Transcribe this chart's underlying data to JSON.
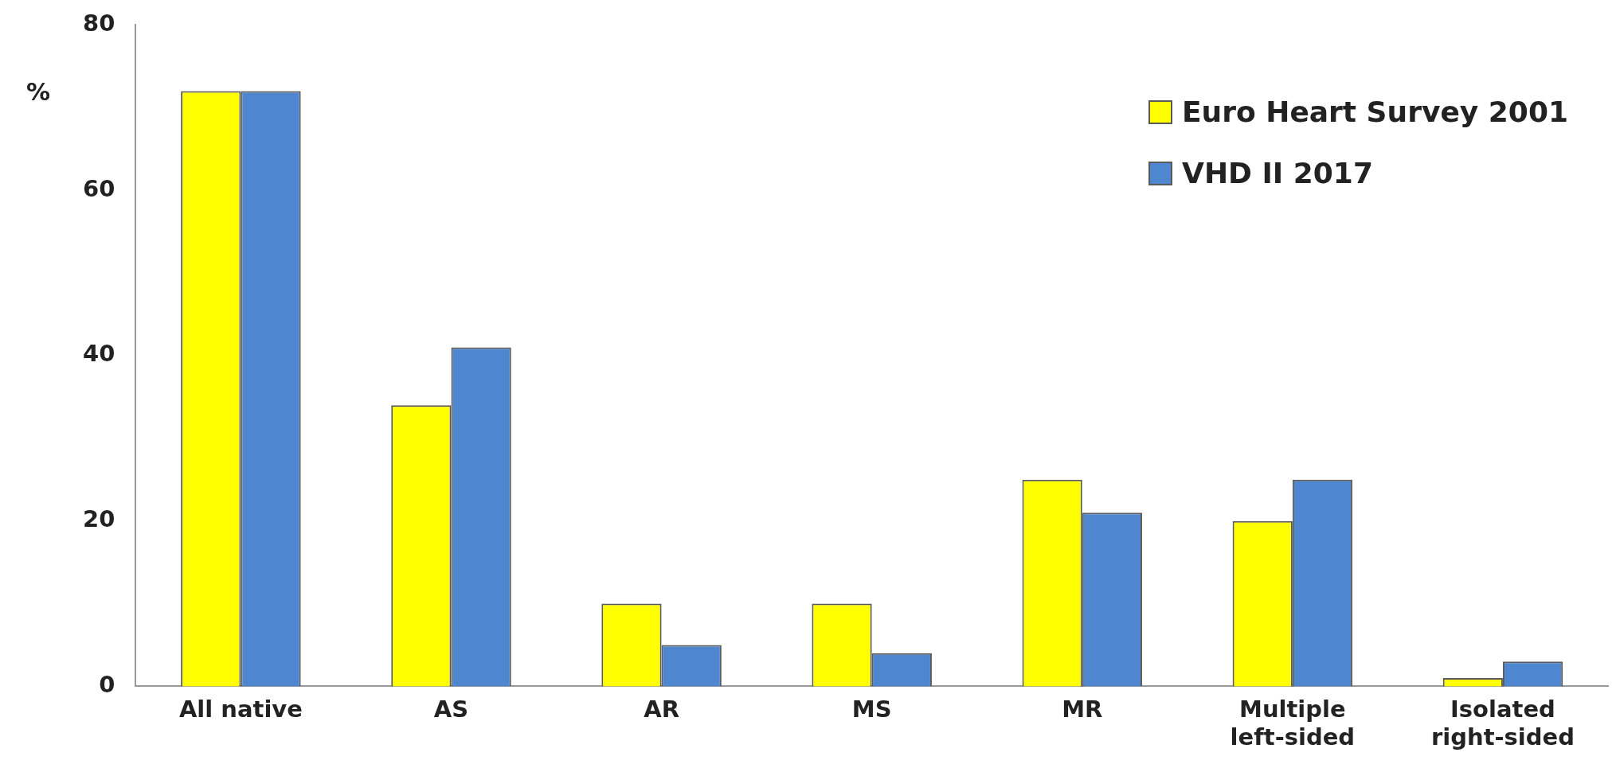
{
  "chart_data": {
    "type": "bar",
    "ylabel": "%",
    "categories": [
      "All native",
      "AS",
      "AR",
      "MS",
      "MR",
      "Multiple left-sided",
      "Isolated right-sided"
    ],
    "series": [
      {
        "name": "Euro Heart Survey 2001",
        "color": "#ffff00",
        "values": [
          72,
          34,
          10,
          10,
          25,
          20,
          1
        ]
      },
      {
        "name": "VHD II 2017",
        "color": "#4f86d0",
        "values": [
          72,
          41,
          5,
          4,
          21,
          25,
          3
        ]
      }
    ],
    "ylim": [
      0,
      80
    ],
    "yticks": [
      0,
      20,
      40,
      60,
      80
    ],
    "grid": false,
    "legend": "top right"
  }
}
